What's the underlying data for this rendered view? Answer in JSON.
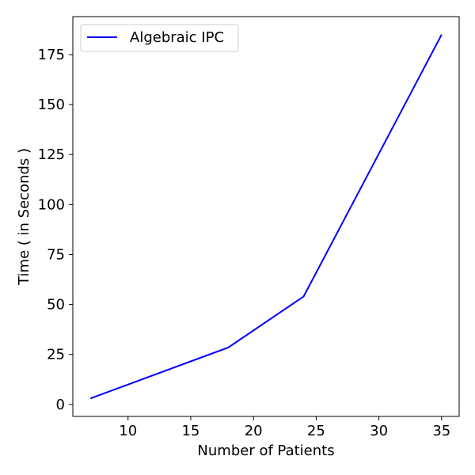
{
  "chart_data": {
    "type": "line",
    "xlabel": "Number of Patients",
    "ylabel": "Time ( in Seconds )",
    "xlim": [
      5.6,
      36.4
    ],
    "ylim": [
      -6,
      194
    ],
    "xticks": [
      10,
      15,
      20,
      25,
      30,
      35
    ],
    "yticks": [
      0,
      25,
      50,
      75,
      100,
      125,
      150,
      175
    ],
    "grid": false,
    "legend_position": "top-left",
    "series": [
      {
        "name": "Algebraic IPC",
        "color": "#0000ff",
        "x": [
          7,
          18,
          24,
          35
        ],
        "y": [
          3,
          28.5,
          54,
          185
        ]
      }
    ]
  }
}
